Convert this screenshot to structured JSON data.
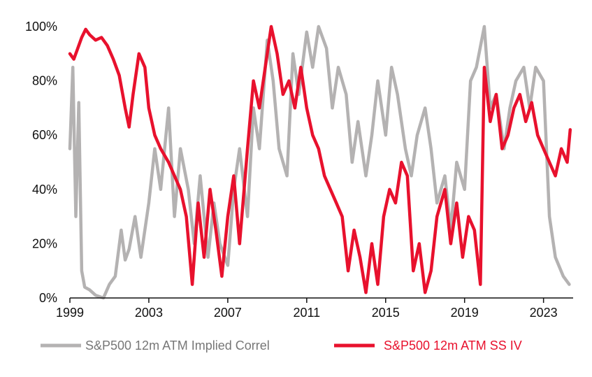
{
  "chart_data": {
    "type": "line",
    "title": "",
    "xlabel": "",
    "ylabel": "",
    "xlim": [
      1999,
      2024.5
    ],
    "ylim": [
      0,
      100
    ],
    "x_ticks": [
      1999,
      2003,
      2007,
      2011,
      2015,
      2019,
      2023
    ],
    "x_tick_labels": [
      "1999",
      "2003",
      "2007",
      "2011",
      "2015",
      "2019",
      "2023"
    ],
    "y_ticks": [
      0,
      20,
      40,
      60,
      80,
      100
    ],
    "y_tick_labels": [
      "0%",
      "20%",
      "40%",
      "60%",
      "80%",
      "100%"
    ],
    "grid": false,
    "legend_position": "bottom",
    "series": [
      {
        "name": "S&P500 12m ATM Implied Correl",
        "color": "#b4b2b2",
        "x": [
          1999.0,
          1999.15,
          1999.3,
          1999.45,
          1999.6,
          1999.75,
          2000.0,
          2000.3,
          2000.7,
          2001.0,
          2001.3,
          2001.6,
          2001.8,
          2002.0,
          2002.3,
          2002.6,
          2003.0,
          2003.3,
          2003.6,
          2004.0,
          2004.3,
          2004.6,
          2005.0,
          2005.3,
          2005.6,
          2006.0,
          2006.3,
          2006.6,
          2007.0,
          2007.3,
          2007.6,
          2008.0,
          2008.3,
          2008.6,
          2009.0,
          2009.3,
          2009.6,
          2010.0,
          2010.3,
          2010.6,
          2011.0,
          2011.3,
          2011.6,
          2012.0,
          2012.3,
          2012.6,
          2013.0,
          2013.3,
          2013.6,
          2014.0,
          2014.3,
          2014.6,
          2015.0,
          2015.3,
          2015.6,
          2016.0,
          2016.3,
          2016.6,
          2017.0,
          2017.3,
          2017.6,
          2018.0,
          2018.3,
          2018.6,
          2019.0,
          2019.3,
          2019.6,
          2020.0,
          2020.3,
          2020.6,
          2021.0,
          2021.3,
          2021.6,
          2022.0,
          2022.3,
          2022.6,
          2023.0,
          2023.3,
          2023.6,
          2024.0,
          2024.3
        ],
        "values": [
          55,
          85,
          30,
          72,
          10,
          4,
          3,
          1,
          0,
          5,
          8,
          25,
          14,
          18,
          30,
          15,
          35,
          55,
          40,
          70,
          30,
          55,
          40,
          20,
          45,
          15,
          35,
          20,
          12,
          40,
          55,
          30,
          70,
          55,
          95,
          80,
          55,
          45,
          90,
          75,
          98,
          85,
          100,
          92,
          70,
          85,
          75,
          50,
          65,
          45,
          60,
          80,
          60,
          85,
          75,
          55,
          45,
          60,
          70,
          55,
          35,
          45,
          25,
          50,
          40,
          80,
          85,
          100,
          70,
          75,
          55,
          70,
          80,
          85,
          70,
          85,
          80,
          30,
          15,
          8,
          5
        ]
      },
      {
        "name": "S&P500 12m ATM SS IV",
        "color": "#e8112d",
        "x": [
          1999.0,
          1999.2,
          1999.4,
          1999.6,
          1999.8,
          2000.0,
          2000.3,
          2000.6,
          2000.9,
          2001.2,
          2001.5,
          2001.8,
          2002.0,
          2002.2,
          2002.5,
          2002.8,
          2003.0,
          2003.3,
          2003.6,
          2004.0,
          2004.3,
          2004.6,
          2004.9,
          2005.2,
          2005.5,
          2005.8,
          2006.1,
          2006.4,
          2006.7,
          2007.0,
          2007.3,
          2007.6,
          2008.0,
          2008.3,
          2008.6,
          2008.9,
          2009.2,
          2009.5,
          2009.8,
          2010.1,
          2010.4,
          2010.7,
          2011.0,
          2011.3,
          2011.6,
          2011.9,
          2012.2,
          2012.5,
          2012.8,
          2013.1,
          2013.4,
          2013.7,
          2014.0,
          2014.3,
          2014.6,
          2014.9,
          2015.2,
          2015.5,
          2015.8,
          2016.1,
          2016.4,
          2016.7,
          2017.0,
          2017.3,
          2017.6,
          2018.0,
          2018.3,
          2018.6,
          2018.9,
          2019.2,
          2019.5,
          2019.8,
          2020.0,
          2020.3,
          2020.6,
          2020.9,
          2021.2,
          2021.5,
          2021.8,
          2022.1,
          2022.4,
          2022.7,
          2023.0,
          2023.3,
          2023.6,
          2023.9,
          2024.2,
          2024.35
        ],
        "values": [
          90,
          88,
          92,
          96,
          99,
          97,
          95,
          96,
          93,
          88,
          82,
          70,
          63,
          75,
          90,
          85,
          70,
          60,
          55,
          50,
          45,
          40,
          30,
          5,
          35,
          15,
          40,
          25,
          8,
          30,
          45,
          20,
          55,
          80,
          70,
          85,
          100,
          90,
          75,
          80,
          70,
          85,
          70,
          60,
          55,
          45,
          40,
          35,
          30,
          10,
          25,
          15,
          2,
          20,
          5,
          30,
          40,
          35,
          50,
          45,
          10,
          20,
          2,
          10,
          30,
          40,
          20,
          35,
          15,
          30,
          25,
          5,
          85,
          65,
          75,
          55,
          60,
          70,
          75,
          65,
          72,
          60,
          55,
          50,
          45,
          55,
          50,
          62
        ]
      }
    ]
  }
}
